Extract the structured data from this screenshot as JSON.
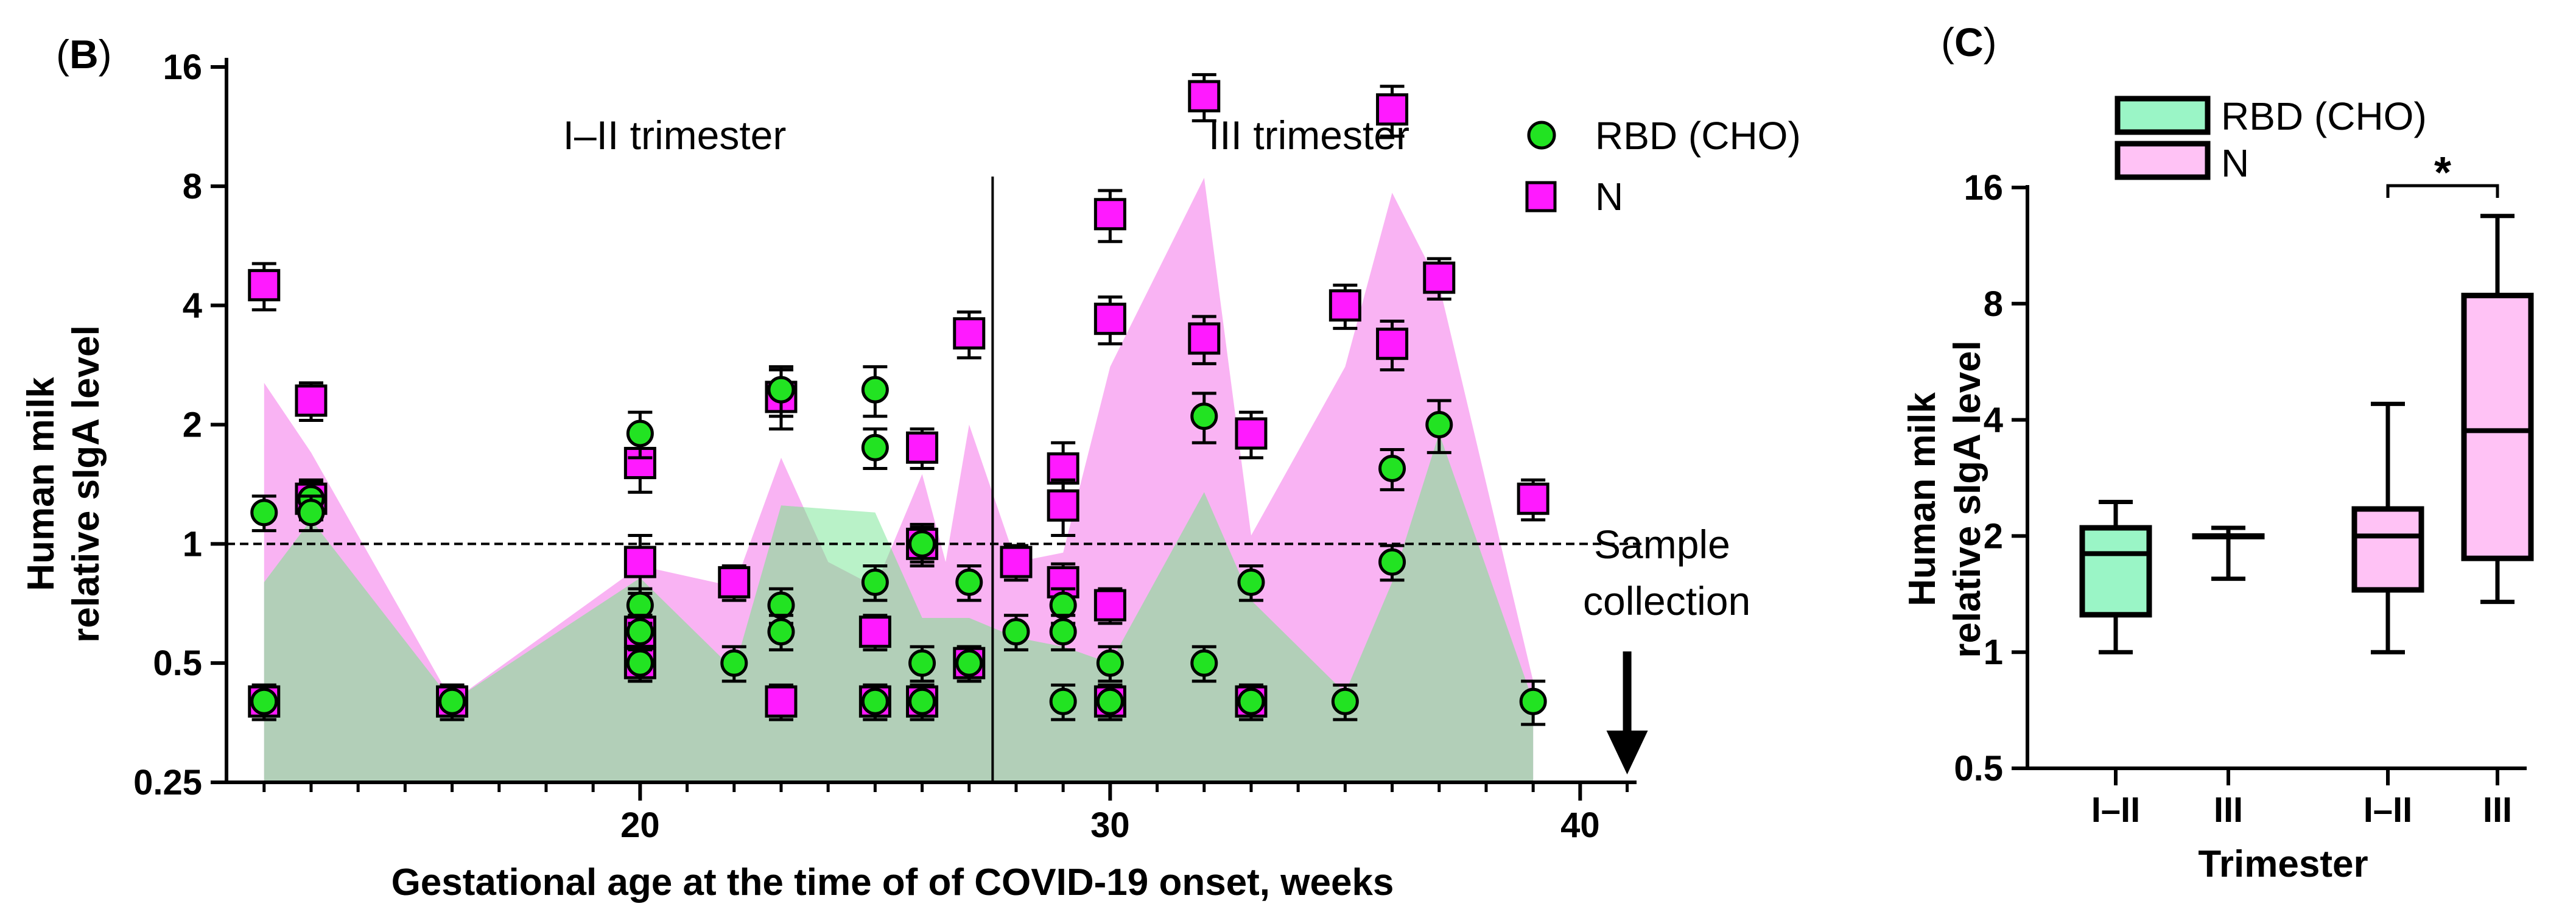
{
  "panels": {
    "B": {
      "open": "(",
      "letter": "B",
      "close": ")"
    },
    "C": {
      "open": "(",
      "letter": "C",
      "close": ")"
    }
  },
  "colors": {
    "rbd_fill": "#22e322",
    "rbd_area": "#7fe89a",
    "n_fill": "#ff1aff",
    "n_area": "#f9b3f3",
    "overlap_area": "#b2cfb8",
    "box_rbd": "#9af5c6",
    "box_n": "#ffc2f5"
  },
  "chart_data": [
    {
      "id": "B",
      "type": "scatter",
      "xlabel": "Gestational age at the time of of COVID-19 onset, weeks",
      "ylabel": [
        "Human milk",
        "relative sIgA level"
      ],
      "xlim": [
        11.2,
        41.2
      ],
      "x_ticks": [
        20,
        30,
        40
      ],
      "x_tick_labels": [
        "20",
        "30",
        "40"
      ],
      "y_scale": "log2",
      "ylim": [
        0.25,
        16
      ],
      "y_ticks": [
        0.25,
        0.5,
        1,
        2,
        4,
        8,
        16
      ],
      "y_tick_labels": [
        "0.25",
        "0.5",
        "1",
        "2",
        "4",
        "8",
        "16"
      ],
      "annotations": {
        "left_trimester": "I–II trimester",
        "right_trimester": "III trimester",
        "trimester_divider_x": 27.5,
        "sample_line_y": 1,
        "sample_label": [
          "Sample",
          "collection"
        ],
        "arrow_x": 41
      },
      "legend": [
        {
          "label": "RBD (CHO)",
          "marker": "circle"
        },
        {
          "label": "N",
          "marker": "square"
        }
      ],
      "series": [
        {
          "name": "RBD (CHO)",
          "marker": "circle",
          "points": [
            {
              "x": 12,
              "y": 1.2,
              "err": 0.12
            },
            {
              "x": 12,
              "y": 0.4,
              "err": 0.04
            },
            {
              "x": 13,
              "y": 1.3,
              "err": 0.13
            },
            {
              "x": 13,
              "y": 1.2,
              "err": 0.12
            },
            {
              "x": 16,
              "y": 0.4,
              "err": 0.04
            },
            {
              "x": 20,
              "y": 1.9,
              "err": 0.25
            },
            {
              "x": 20,
              "y": 0.7,
              "err": 0.07
            },
            {
              "x": 20,
              "y": 0.6,
              "err": 0.06
            },
            {
              "x": 20,
              "y": 0.5,
              "err": 0.05
            },
            {
              "x": 22,
              "y": 0.5,
              "err": 0.05
            },
            {
              "x": 23,
              "y": 2.45,
              "err": 0.35
            },
            {
              "x": 23,
              "y": 0.7,
              "err": 0.07
            },
            {
              "x": 23,
              "y": 0.6,
              "err": 0.06
            },
            {
              "x": 25,
              "y": 2.45,
              "err": 0.35
            },
            {
              "x": 25,
              "y": 1.75,
              "err": 0.2
            },
            {
              "x": 25,
              "y": 0.8,
              "err": 0.08
            },
            {
              "x": 25,
              "y": 0.4,
              "err": 0.04
            },
            {
              "x": 26,
              "y": 1.0,
              "err": 0.1
            },
            {
              "x": 26,
              "y": 0.5,
              "err": 0.05
            },
            {
              "x": 26,
              "y": 0.4,
              "err": 0.04
            },
            {
              "x": 27,
              "y": 0.8,
              "err": 0.08
            },
            {
              "x": 27,
              "y": 0.5,
              "err": 0.05
            },
            {
              "x": 28,
              "y": 0.6,
              "err": 0.06
            },
            {
              "x": 29,
              "y": 0.7,
              "err": 0.07
            },
            {
              "x": 29,
              "y": 0.6,
              "err": 0.06
            },
            {
              "x": 29,
              "y": 0.4,
              "err": 0.04
            },
            {
              "x": 30,
              "y": 0.5,
              "err": 0.05
            },
            {
              "x": 30,
              "y": 0.4,
              "err": 0.04
            },
            {
              "x": 32,
              "y": 2.1,
              "err": 0.3
            },
            {
              "x": 32,
              "y": 0.5,
              "err": 0.05
            },
            {
              "x": 33,
              "y": 0.8,
              "err": 0.08
            },
            {
              "x": 33,
              "y": 0.4,
              "err": 0.04
            },
            {
              "x": 35,
              "y": 0.4,
              "err": 0.04
            },
            {
              "x": 36,
              "y": 1.55,
              "err": 0.18
            },
            {
              "x": 36,
              "y": 0.9,
              "err": 0.09
            },
            {
              "x": 37,
              "y": 2.0,
              "err": 0.3
            },
            {
              "x": 39,
              "y": 0.4,
              "err": 0.05
            }
          ]
        },
        {
          "name": "N",
          "marker": "square",
          "points": [
            {
              "x": 12,
              "y": 4.5,
              "err": 0.6
            },
            {
              "x": 12,
              "y": 0.4,
              "err": 0.04
            },
            {
              "x": 13,
              "y": 2.3,
              "err": 0.25
            },
            {
              "x": 13,
              "y": 1.3,
              "err": 0.15
            },
            {
              "x": 16,
              "y": 0.4,
              "err": 0.04
            },
            {
              "x": 20,
              "y": 1.6,
              "err": 0.25
            },
            {
              "x": 20,
              "y": 0.9,
              "err": 0.15
            },
            {
              "x": 20,
              "y": 0.6,
              "err": 0.06
            },
            {
              "x": 20,
              "y": 0.5,
              "err": 0.05
            },
            {
              "x": 22,
              "y": 0.8,
              "err": 0.08
            },
            {
              "x": 23,
              "y": 2.35,
              "err": 0.4
            },
            {
              "x": 23,
              "y": 0.4,
              "err": 0.04
            },
            {
              "x": 25,
              "y": 0.6,
              "err": 0.06
            },
            {
              "x": 25,
              "y": 0.4,
              "err": 0.04
            },
            {
              "x": 26,
              "y": 1.75,
              "err": 0.2
            },
            {
              "x": 26,
              "y": 1.0,
              "err": 0.12
            },
            {
              "x": 26,
              "y": 0.4,
              "err": 0.04
            },
            {
              "x": 27,
              "y": 3.4,
              "err": 0.45
            },
            {
              "x": 27,
              "y": 0.5,
              "err": 0.05
            },
            {
              "x": 28,
              "y": 0.9,
              "err": 0.09
            },
            {
              "x": 29,
              "y": 1.55,
              "err": 0.25
            },
            {
              "x": 29,
              "y": 1.25,
              "err": 0.2
            },
            {
              "x": 29,
              "y": 0.8,
              "err": 0.09
            },
            {
              "x": 30,
              "y": 6.8,
              "err": 1.0
            },
            {
              "x": 30,
              "y": 3.7,
              "err": 0.5
            },
            {
              "x": 30,
              "y": 0.7,
              "err": 0.07
            },
            {
              "x": 30,
              "y": 0.4,
              "err": 0.04
            },
            {
              "x": 32,
              "y": 13.5,
              "err": 1.8
            },
            {
              "x": 32,
              "y": 3.3,
              "err": 0.45
            },
            {
              "x": 33,
              "y": 1.9,
              "err": 0.25
            },
            {
              "x": 33,
              "y": 0.4,
              "err": 0.04
            },
            {
              "x": 35,
              "y": 4.0,
              "err": 0.5
            },
            {
              "x": 36,
              "y": 12.5,
              "err": 1.8
            },
            {
              "x": 36,
              "y": 3.2,
              "err": 0.45
            },
            {
              "x": 37,
              "y": 4.7,
              "err": 0.55
            },
            {
              "x": 39,
              "y": 1.3,
              "err": 0.15
            }
          ]
        }
      ],
      "area_rbd": [
        {
          "x": 12,
          "y": 0.8
        },
        {
          "x": 13,
          "y": 1.15
        },
        {
          "x": 16,
          "y": 0.4
        },
        {
          "x": 20,
          "y": 0.82
        },
        {
          "x": 22,
          "y": 0.48
        },
        {
          "x": 23,
          "y": 1.25
        },
        {
          "x": 25,
          "y": 1.2
        },
        {
          "x": 26,
          "y": 0.65
        },
        {
          "x": 27,
          "y": 0.65
        },
        {
          "x": 28,
          "y": 0.58
        },
        {
          "x": 29,
          "y": 0.55
        },
        {
          "x": 30,
          "y": 0.5
        },
        {
          "x": 32,
          "y": 1.35
        },
        {
          "x": 33,
          "y": 0.72
        },
        {
          "x": 35,
          "y": 0.42
        },
        {
          "x": 36,
          "y": 0.8
        },
        {
          "x": 37,
          "y": 1.9
        },
        {
          "x": 39,
          "y": 0.4
        }
      ],
      "area_n": [
        {
          "x": 12,
          "y": 2.55
        },
        {
          "x": 13,
          "y": 1.7
        },
        {
          "x": 16,
          "y": 0.4
        },
        {
          "x": 20,
          "y": 0.88
        },
        {
          "x": 22,
          "y": 0.78
        },
        {
          "x": 23,
          "y": 1.65
        },
        {
          "x": 24,
          "y": 0.9
        },
        {
          "x": 25,
          "y": 0.78
        },
        {
          "x": 26,
          "y": 1.5
        },
        {
          "x": 26.5,
          "y": 0.9
        },
        {
          "x": 27,
          "y": 2.0
        },
        {
          "x": 28,
          "y": 0.9
        },
        {
          "x": 29,
          "y": 0.95
        },
        {
          "x": 30,
          "y": 2.8
        },
        {
          "x": 32,
          "y": 8.4
        },
        {
          "x": 33,
          "y": 1.05
        },
        {
          "x": 35,
          "y": 2.8
        },
        {
          "x": 36,
          "y": 7.7
        },
        {
          "x": 37,
          "y": 4.5
        },
        {
          "x": 39,
          "y": 0.45
        }
      ]
    },
    {
      "id": "C",
      "type": "box",
      "xlabel": "Trimester",
      "ylabel": [
        "Human milk",
        "relative sIgA level"
      ],
      "y_scale": "log2",
      "ylim": [
        0.5,
        16
      ],
      "y_ticks": [
        0.5,
        1,
        2,
        4,
        8,
        16
      ],
      "y_tick_labels": [
        "0.5",
        "1",
        "2",
        "4",
        "8",
        "16"
      ],
      "legend": [
        {
          "label": "RBD (CHO)",
          "series": "RBD (CHO)"
        },
        {
          "label": "N",
          "series": "N"
        }
      ],
      "significance": {
        "between": [
          2,
          3
        ],
        "label": "*"
      },
      "boxes": [
        {
          "category": "I–II",
          "series": "RBD (CHO)",
          "min": 1.0,
          "q1": 1.25,
          "median": 1.8,
          "q3": 2.1,
          "max": 2.45
        },
        {
          "category": "III",
          "series": "RBD (CHO)",
          "min": 1.55,
          "q1": 2.0,
          "median": 2.0,
          "q3": 2.0,
          "max": 2.1
        },
        {
          "category": "I–II",
          "series": "N",
          "min": 1.0,
          "q1": 1.45,
          "median": 2.0,
          "q3": 2.35,
          "max": 4.4
        },
        {
          "category": "III",
          "series": "N",
          "min": 1.35,
          "q1": 1.75,
          "median": 3.75,
          "q3": 8.4,
          "max": 13.5
        }
      ]
    }
  ]
}
